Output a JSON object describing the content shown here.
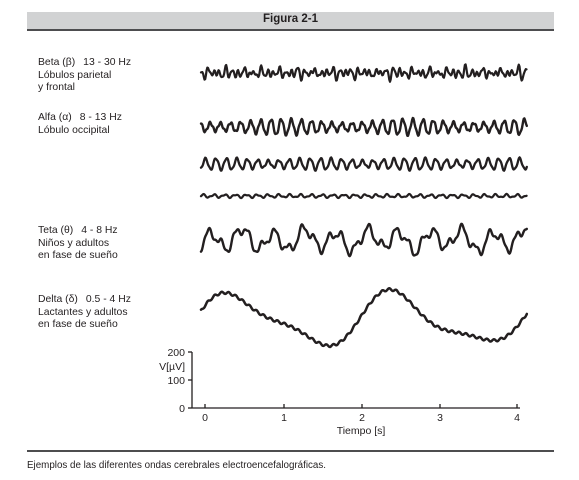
{
  "figure": {
    "title": "Figura 2-1",
    "caption": "Ejemplos de las diferentes ondas cerebrales electroencefalográficas."
  },
  "waves": [
    {
      "name": "Beta (β)",
      "band": "13 - 30 Hz",
      "lines": [
        "Lóbulos parietal",
        "y frontal"
      ]
    },
    {
      "name": "Alfa (α)",
      "band": "8 - 13 Hz",
      "lines": [
        "Lóbulo occipital"
      ]
    },
    {
      "name": "Teta (θ)",
      "band": "4 - 8 Hz",
      "lines": [
        "Niños y adultos",
        "en fase de sueño"
      ]
    },
    {
      "name": "Delta (δ)",
      "band": "0.5 - 4 Hz",
      "lines": [
        "Lactantes y adultos",
        "en fase de sueño"
      ]
    }
  ],
  "scale": {
    "y_unit": "V[µV]",
    "y_ticks": [
      "200",
      "100",
      "0"
    ],
    "x_ticks": [
      "0",
      "1",
      "2",
      "3",
      "4"
    ],
    "x_label": "Tiempo [s]"
  }
}
